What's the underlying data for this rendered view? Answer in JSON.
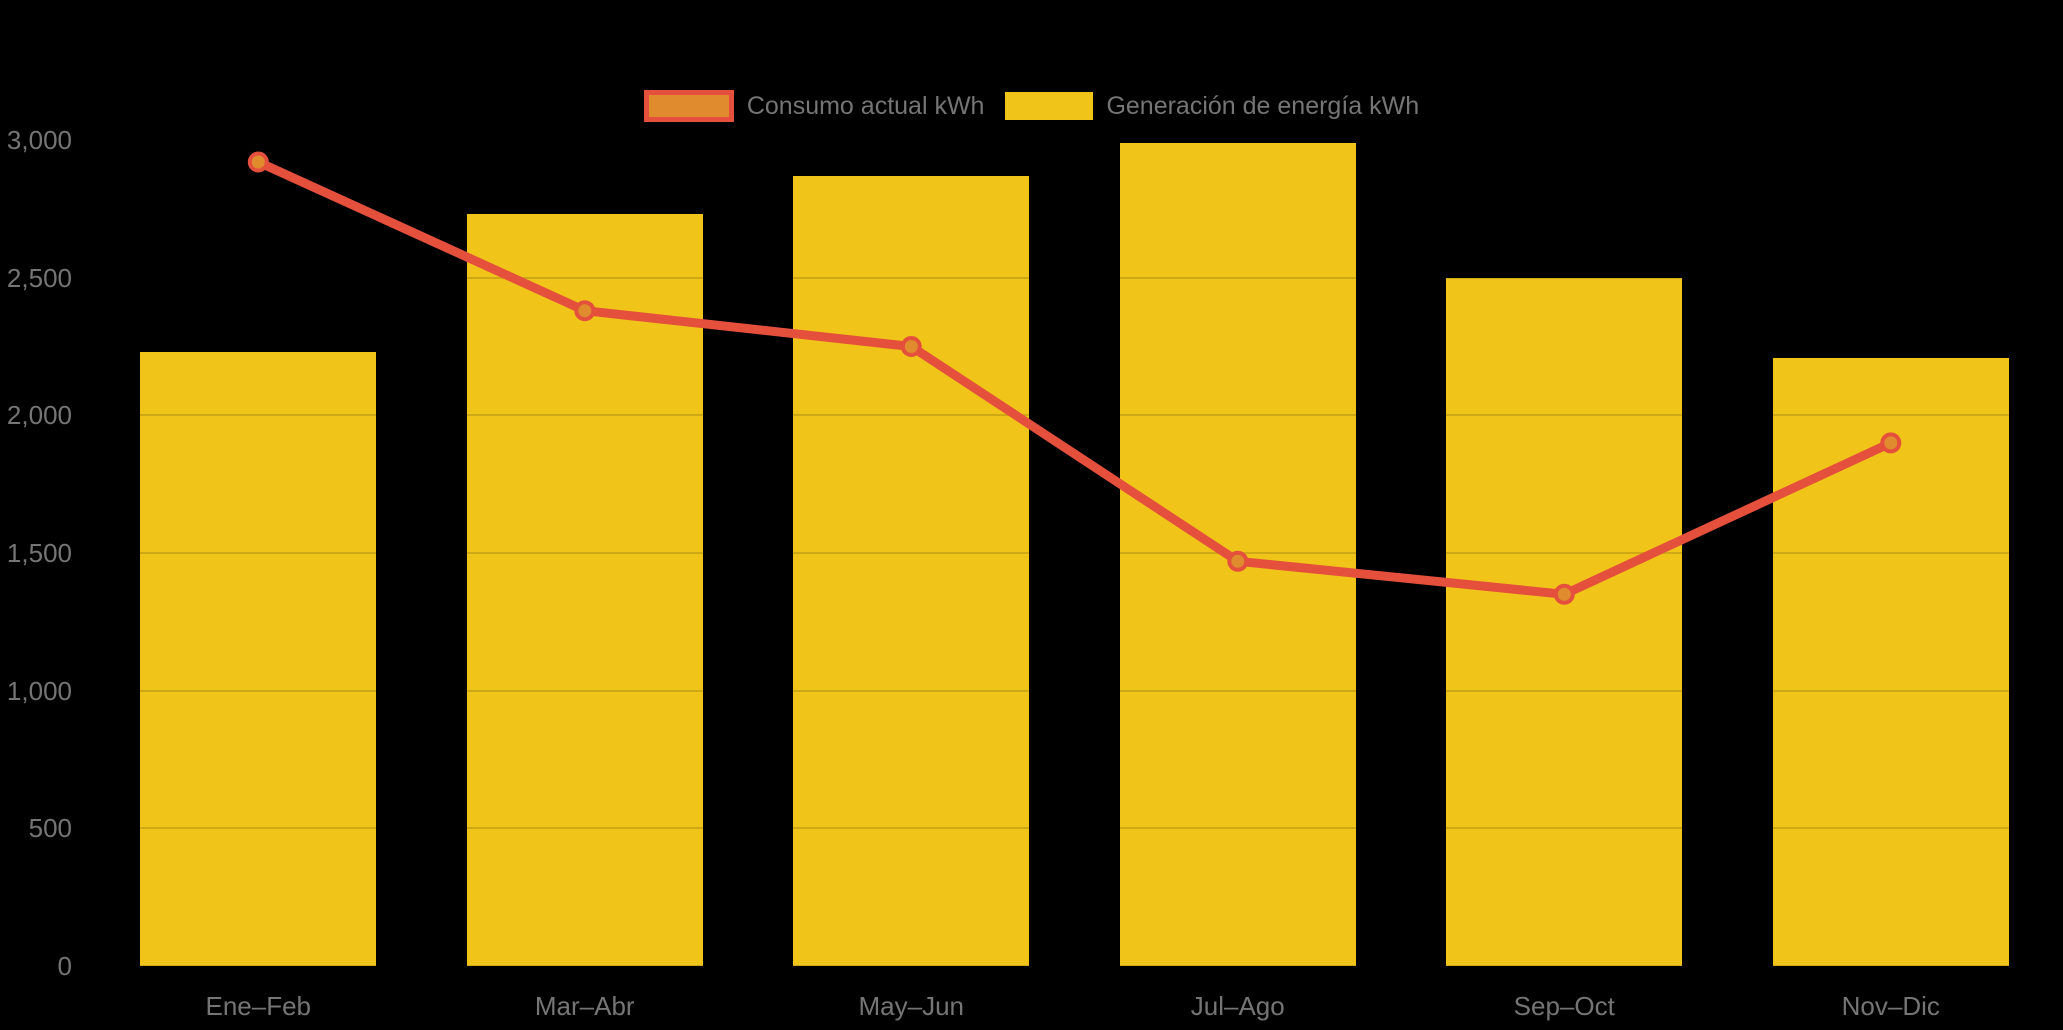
{
  "chart_data": {
    "type": "bar",
    "subtype": "bar-with-line-overlay",
    "title": "",
    "xlabel": "",
    "ylabel": "",
    "background_color": "#000000",
    "text_color": "#757575",
    "grid": true,
    "legend_position": "top-center",
    "categories": [
      "Ene–Feb",
      "Mar–Abr",
      "May–Jun",
      "Jul–Ago",
      "Sep–Oct",
      "Nov–Dic"
    ],
    "series": [
      {
        "name": "Consumo actual kWh",
        "type": "line",
        "line_color": "#E5503C",
        "point_fill_color": "#E08C2E",
        "values": [
          2920,
          2380,
          2250,
          1470,
          1350,
          1900
        ]
      },
      {
        "name": "Generación de energía kWh",
        "type": "bar",
        "bar_color": "#F0C419",
        "values": [
          2230,
          2730,
          2870,
          2990,
          2500,
          2210
        ]
      }
    ],
    "ylim": [
      0,
      3000
    ],
    "yticks": [
      0,
      500,
      1000,
      1500,
      2000,
      2500,
      3000
    ],
    "ytick_labels": [
      "0",
      "500",
      "1,000",
      "1,500",
      "2,000",
      "2,500",
      "3,000"
    ]
  }
}
